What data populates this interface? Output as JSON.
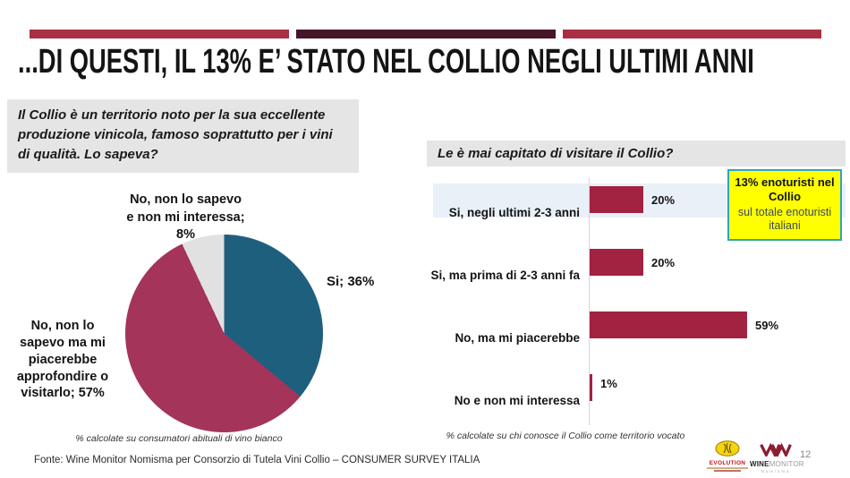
{
  "slide": {
    "title": "...DI QUESTI, IL 13% E’ STATO NEL COLLIO NEGLI ULTIMI ANNI",
    "source_line": "Fonte: Wine Monitor Nomisma per Consorzio di Tutela Vini Collio – CONSUMER SURVEY ITALIA",
    "page_number": "12",
    "accent_colors": {
      "crimson": "#A93043",
      "dark_maroon": "#471527"
    }
  },
  "pie_section": {
    "question": "Il Collio è un territorio noto per la sua eccellente produzione vinicola, famoso soprattutto per i vini di qualità. Lo sapeva?",
    "label_top": "No, non lo sapevo\ne non mi interessa;\n8%",
    "label_right": "Si; 36%",
    "label_left": "No, non lo\nsapevo ma mi\npiacerebbe\napprofondire o\nvisitarlo; 57%",
    "footnote": "% calcolate su consumatori abituali di vino bianco"
  },
  "bar_section": {
    "question": "Le è mai capitato di visitare il Collio?",
    "callout_line1": "13% enoturisti nel Collio",
    "callout_line2": "sul totale enoturisti italiani",
    "callout_colors": {
      "background": "#FFFF00",
      "border": "#2EA3BF"
    },
    "footnote": "% calcolate su chi conosce il Collio come territorio vocato"
  },
  "chart_data": [
    {
      "type": "pie",
      "title": "Il Collio è un territorio noto per la sua eccellente produzione vinicola, famoso soprattutto per i vini di qualità. Lo sapeva?",
      "labels": [
        "Si",
        "No, non lo sapevo ma mi piacerebbe approfondire o visitarlo",
        "No, non lo sapevo e non mi interessa"
      ],
      "values": [
        36,
        57,
        8
      ],
      "colors": [
        "#1F5F7E",
        "#A4345A",
        "#E1E1E1"
      ],
      "start_angle_deg": 0,
      "direction": "clockwise",
      "footnote": "% calcolate su consumatori abituali di vino bianco"
    },
    {
      "type": "bar",
      "orientation": "horizontal",
      "title": "Le è mai capitato di visitare il Collio?",
      "categories": [
        "Si, negli ultimi 2-3 anni",
        "Si, ma prima di 2-3 anni fa",
        "No, ma mi piacerebbe",
        "No e non mi interessa"
      ],
      "values": [
        20,
        20,
        59,
        1
      ],
      "value_labels": [
        "20%",
        "20%",
        "59%",
        "1%"
      ],
      "bar_color": "#A22241",
      "xlim": [
        0,
        100
      ],
      "highlighted_category_index": 0,
      "highlight_color": "#E9F0F8",
      "footnote": "% calcolate su chi conosce il Collio come territorio vocato"
    }
  ],
  "logos": {
    "evolution_label": "EVOLUTION",
    "winemonitor_wine": "WINE",
    "winemonitor_monitor": "MONITOR",
    "winemonitor_sub": "Nomisma"
  }
}
